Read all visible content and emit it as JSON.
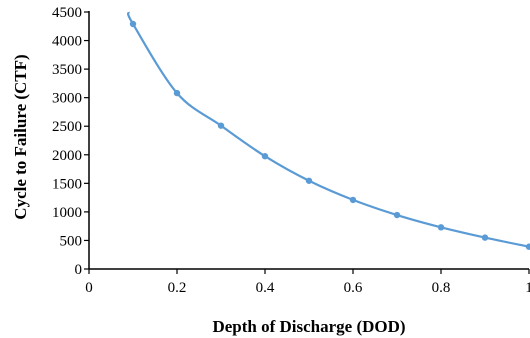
{
  "chart_data": {
    "type": "line",
    "title": "",
    "xlabel": "Depth of Discharge (DOD)",
    "ylabel": "Cycle to Failure  (CTF)",
    "xlim": [
      0,
      1
    ],
    "ylim": [
      0,
      4500
    ],
    "x_ticks": [
      0,
      0.2,
      0.4,
      0.6,
      0.8,
      1
    ],
    "x_tick_labels": [
      "0",
      "0.2",
      "0.4",
      "0.6",
      "0.8",
      "1"
    ],
    "y_ticks": [
      0,
      500,
      1000,
      1500,
      2000,
      2500,
      3000,
      3500,
      4000,
      4500
    ],
    "y_tick_labels": [
      "0",
      "500",
      "1000",
      "1500",
      "2000",
      "2500",
      "3000",
      "3500",
      "4000",
      "4500"
    ],
    "grid": false,
    "line_color": "#5b9bd5",
    "curve_start": {
      "x": 0.09,
      "y": 4500
    },
    "series": [
      {
        "x": [
          0.1,
          0.2,
          0.3,
          0.4,
          0.5,
          0.6,
          0.7,
          0.8,
          0.9,
          1.0
        ],
        "y": [
          4290,
          3080,
          2510,
          1975,
          1545,
          1210,
          945,
          730,
          550,
          390
        ]
      }
    ]
  }
}
